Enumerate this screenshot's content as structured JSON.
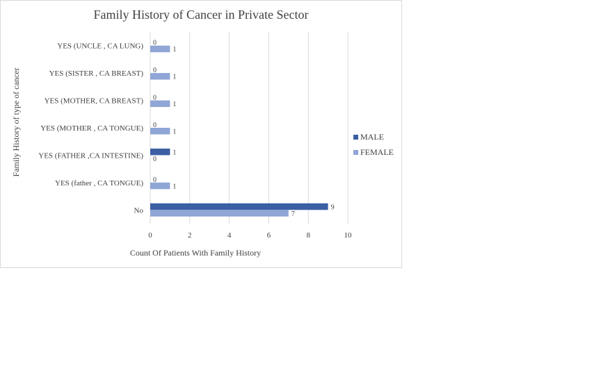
{
  "chart_data": {
    "type": "bar",
    "orientation": "horizontal",
    "title": "Family History of Cancer in Private Sector",
    "xlabel": "Count Of Patients With Family History",
    "ylabel": "Family History of type of cancer",
    "categories": [
      "No",
      "YES (father , CA TONGUE)",
      "YES (FATHER ,CA INTESTINE)",
      "YES (MOTHER , CA TONGUE)",
      "YES (MOTHER, CA BREAST)",
      "YES (SISTER , CA BREAST)",
      "YES (UNCLE , CA LUNG)"
    ],
    "series": [
      {
        "name": "MALE",
        "color": "#3a5fa3",
        "values": [
          9,
          0,
          1,
          0,
          0,
          0,
          0
        ]
      },
      {
        "name": "FEMALE",
        "color": "#8fa6d6",
        "values": [
          7,
          1,
          0,
          1,
          1,
          1,
          1
        ]
      }
    ],
    "xlim": [
      0,
      10
    ],
    "xticks": [
      "0",
      "2",
      "4",
      "6",
      "8",
      "10"
    ],
    "grid": true,
    "legend_position": "right"
  }
}
